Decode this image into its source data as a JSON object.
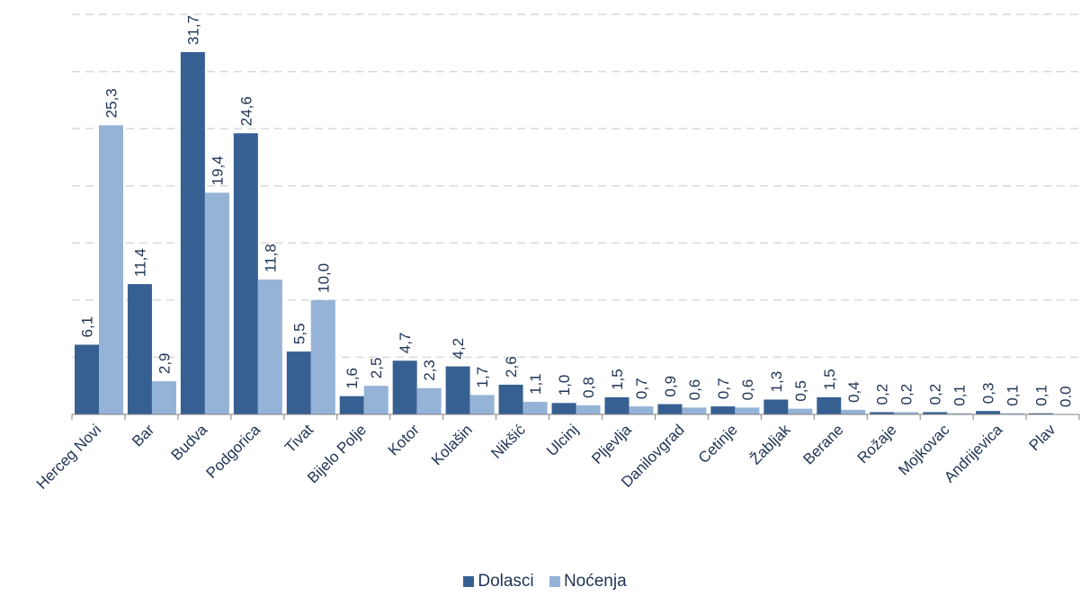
{
  "chart_data": {
    "type": "bar",
    "categories": [
      "Herceg Novi",
      "Bar",
      "Budva",
      "Podgorica",
      "Tivat",
      "Bijelo Polje",
      "Kotor",
      "Kolašin",
      "Nikšić",
      "Ulcinj",
      "Pljevlja",
      "Danilovgrad",
      "Cetinje",
      "Žabljak",
      "Berane",
      "Rožaje",
      "Mojkovac",
      "Andrijevica",
      "Plav"
    ],
    "series": [
      {
        "name": "Dolasci",
        "color": "#376092",
        "values": [
          6.1,
          11.4,
          31.7,
          24.6,
          5.5,
          1.6,
          4.7,
          4.2,
          2.6,
          1.0,
          1.5,
          0.9,
          0.7,
          1.3,
          1.5,
          0.2,
          0.2,
          0.3,
          0.1
        ],
        "labels": [
          "6,1",
          "11,4",
          "31,7",
          "24,6",
          "5,5",
          "1,6",
          "4,7",
          "4,2",
          "2,6",
          "1,0",
          "1,5",
          "0,9",
          "0,7",
          "1,3",
          "1,5",
          "0,2",
          "0,2",
          "0,3",
          "0,1"
        ]
      },
      {
        "name": "Noćenja",
        "color": "#95b3d7",
        "values": [
          25.3,
          2.9,
          19.4,
          11.8,
          10.0,
          2.5,
          2.3,
          1.7,
          1.1,
          0.8,
          0.7,
          0.6,
          0.6,
          0.5,
          0.4,
          0.2,
          0.1,
          0.1,
          0.0
        ],
        "labels": [
          "25,3",
          "2,9",
          "19,4",
          "11,8",
          "10,0",
          "2,5",
          "2,3",
          "1,7",
          "1,1",
          "0,8",
          "0,7",
          "0,6",
          "0,6",
          "0,5",
          "0,4",
          "0,2",
          "0,1",
          "0,1",
          "0.0"
        ]
      }
    ],
    "ylim": [
      0,
      35
    ],
    "grid": true,
    "legend_position": "bottom-center"
  }
}
